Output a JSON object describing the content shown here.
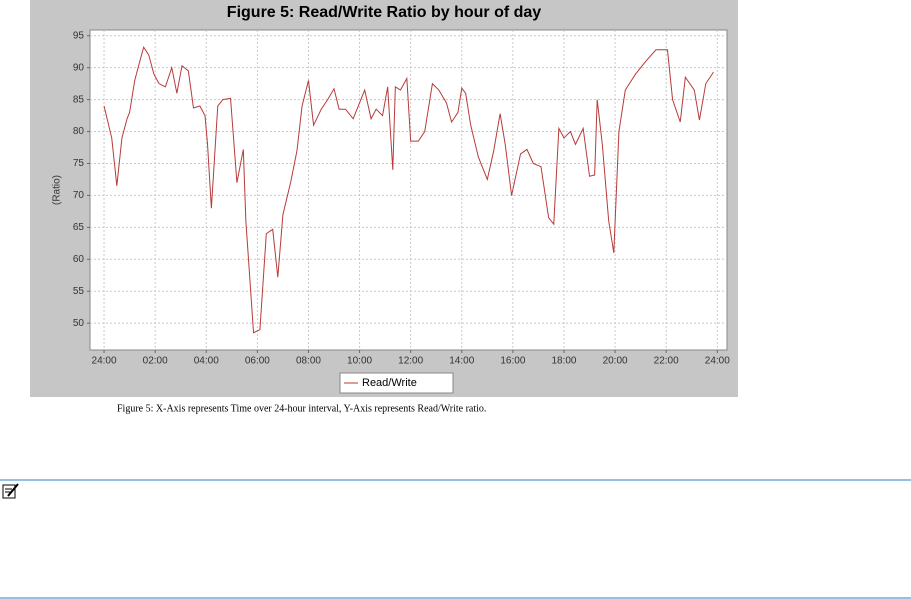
{
  "chart_data": {
    "type": "line",
    "title": "Figure 5: Read/Write Ratio by hour of day",
    "y_label": "(Ratio)",
    "xlim": [
      -0.55,
      24.38
    ],
    "ylim": [
      45.8,
      95.9
    ],
    "xticks": [
      {
        "value": 0,
        "label": "24:00"
      },
      {
        "value": 2,
        "label": "02:00"
      },
      {
        "value": 4,
        "label": "04:00"
      },
      {
        "value": 6,
        "label": "06:00"
      },
      {
        "value": 8,
        "label": "08:00"
      },
      {
        "value": 10,
        "label": "10:00"
      },
      {
        "value": 12,
        "label": "12:00"
      },
      {
        "value": 14,
        "label": "14:00"
      },
      {
        "value": 16,
        "label": "16:00"
      },
      {
        "value": 18,
        "label": "18:00"
      },
      {
        "value": 20,
        "label": "20:00"
      },
      {
        "value": 22,
        "label": "22:00"
      },
      {
        "value": 24,
        "label": "24:00"
      }
    ],
    "yticks": [
      50,
      55,
      60,
      65,
      70,
      75,
      80,
      85,
      90,
      95
    ],
    "grid": true,
    "legend": "bottom",
    "x": [
      0.0,
      0.3,
      0.5,
      0.7,
      0.9,
      1.0,
      1.2,
      1.4,
      1.55,
      1.75,
      1.95,
      2.15,
      2.4,
      2.65,
      2.85,
      3.05,
      3.3,
      3.5,
      3.75,
      3.95,
      4.05,
      4.2,
      4.45,
      4.65,
      4.95,
      5.2,
      5.45,
      5.55,
      5.85,
      6.1,
      6.35,
      6.6,
      6.8,
      7.0,
      7.3,
      7.55,
      7.75,
      8.0,
      8.2,
      8.5,
      8.75,
      9.0,
      9.2,
      9.45,
      9.75,
      9.95,
      10.2,
      10.45,
      10.65,
      10.9,
      11.1,
      11.3,
      11.4,
      11.6,
      11.85,
      12.0,
      12.3,
      12.55,
      12.85,
      13.1,
      13.4,
      13.6,
      13.85,
      14.0,
      14.15,
      14.35,
      14.65,
      15.0,
      15.25,
      15.5,
      15.7,
      15.95,
      16.3,
      16.55,
      16.8,
      17.1,
      17.4,
      17.6,
      17.8,
      18.0,
      18.25,
      18.45,
      18.75,
      19.0,
      19.2,
      19.3,
      19.5,
      19.75,
      19.95,
      20.15,
      20.4,
      20.8,
      21.2,
      21.6,
      22.05,
      22.25,
      22.55,
      22.75,
      23.1,
      23.3,
      23.55,
      23.85
    ],
    "series": [
      {
        "name": "Read/Write",
        "color": "#b83a3a",
        "values": [
          84,
          79,
          71.5,
          79,
          82,
          83,
          88,
          91,
          93.2,
          92,
          89,
          87.5,
          87,
          90,
          86,
          90.3,
          89.5,
          83.7,
          84,
          82.5,
          78,
          68,
          84,
          85,
          85.2,
          72,
          77.2,
          66,
          48.5,
          49,
          64,
          64.7,
          57.2,
          67,
          72,
          77,
          84,
          88,
          81,
          83.5,
          85,
          86.7,
          83.5,
          83.5,
          82,
          84,
          86.5,
          82,
          83.5,
          82.5,
          87,
          74,
          87,
          86.5,
          88.3,
          78.5,
          78.5,
          80,
          87.5,
          86.5,
          84.5,
          81.5,
          83,
          86.8,
          86,
          81,
          76,
          72.5,
          77,
          82.8,
          78,
          70,
          76.5,
          77.2,
          75,
          74.5,
          66.5,
          65.5,
          80.5,
          79,
          80,
          78,
          80.5,
          73,
          73.2,
          85,
          78,
          66,
          61,
          80,
          86.5,
          89,
          91,
          92.8,
          92.8,
          85,
          81.5,
          88.5,
          86.5,
          81.8,
          87.5,
          89.3
        ]
      }
    ]
  },
  "caption": "Figure 5: X-Axis represents Time over 24-hour interval, Y-Axis represents Read/Write ratio."
}
